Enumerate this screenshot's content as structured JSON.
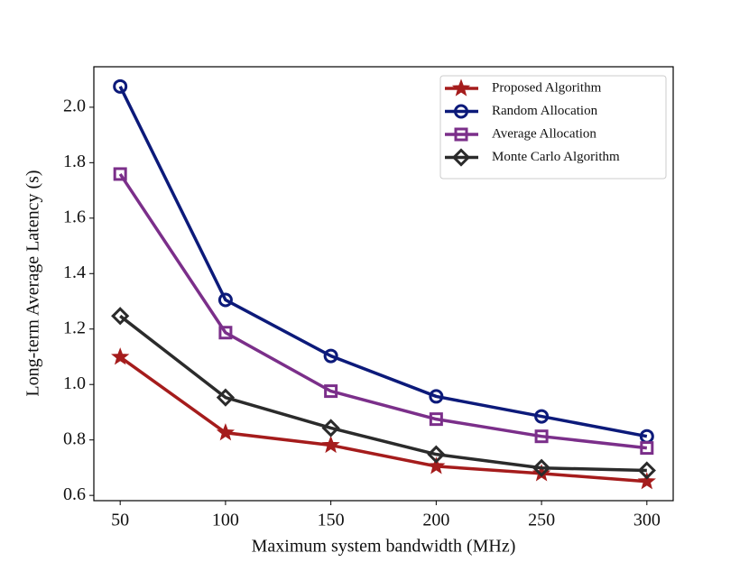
{
  "chart_data": {
    "type": "line",
    "xlabel": "Maximum system bandwidth (MHz)",
    "ylabel": "Long-term Average Latency (s)",
    "x": [
      50,
      100,
      150,
      200,
      250,
      300
    ],
    "xlim": [
      37.5,
      312.5
    ],
    "xticks": [
      50,
      100,
      150,
      200,
      250,
      300
    ],
    "ylim": [
      0.581,
      2.146
    ],
    "yticks": [
      0.6,
      0.8,
      {
        "value": 1.0,
        "label": "1.0"
      },
      1.2,
      1.4,
      1.6,
      1.8,
      {
        "value": 2.0,
        "label": "2.0"
      }
    ],
    "legend": "upper right",
    "series": [
      {
        "name": "Proposed Algorithm",
        "color": "#a51c1c",
        "marker": "star",
        "values": [
          1.099,
          0.826,
          0.781,
          0.705,
          0.679,
          0.65
        ]
      },
      {
        "name": "Random Allocation",
        "color": "#0c1a7a",
        "marker": "circle",
        "values": [
          2.075,
          1.305,
          1.103,
          0.957,
          0.885,
          0.813
        ]
      },
      {
        "name": "Average Allocation",
        "color": "#7b2f8a",
        "marker": "square",
        "values": [
          1.759,
          1.187,
          0.976,
          0.875,
          0.813,
          0.771
        ]
      },
      {
        "name": "Monte Carlo Algorithm",
        "color": "#2b2b2b",
        "marker": "diamond",
        "values": [
          1.247,
          0.953,
          0.843,
          0.748,
          0.699,
          0.69
        ]
      }
    ]
  }
}
